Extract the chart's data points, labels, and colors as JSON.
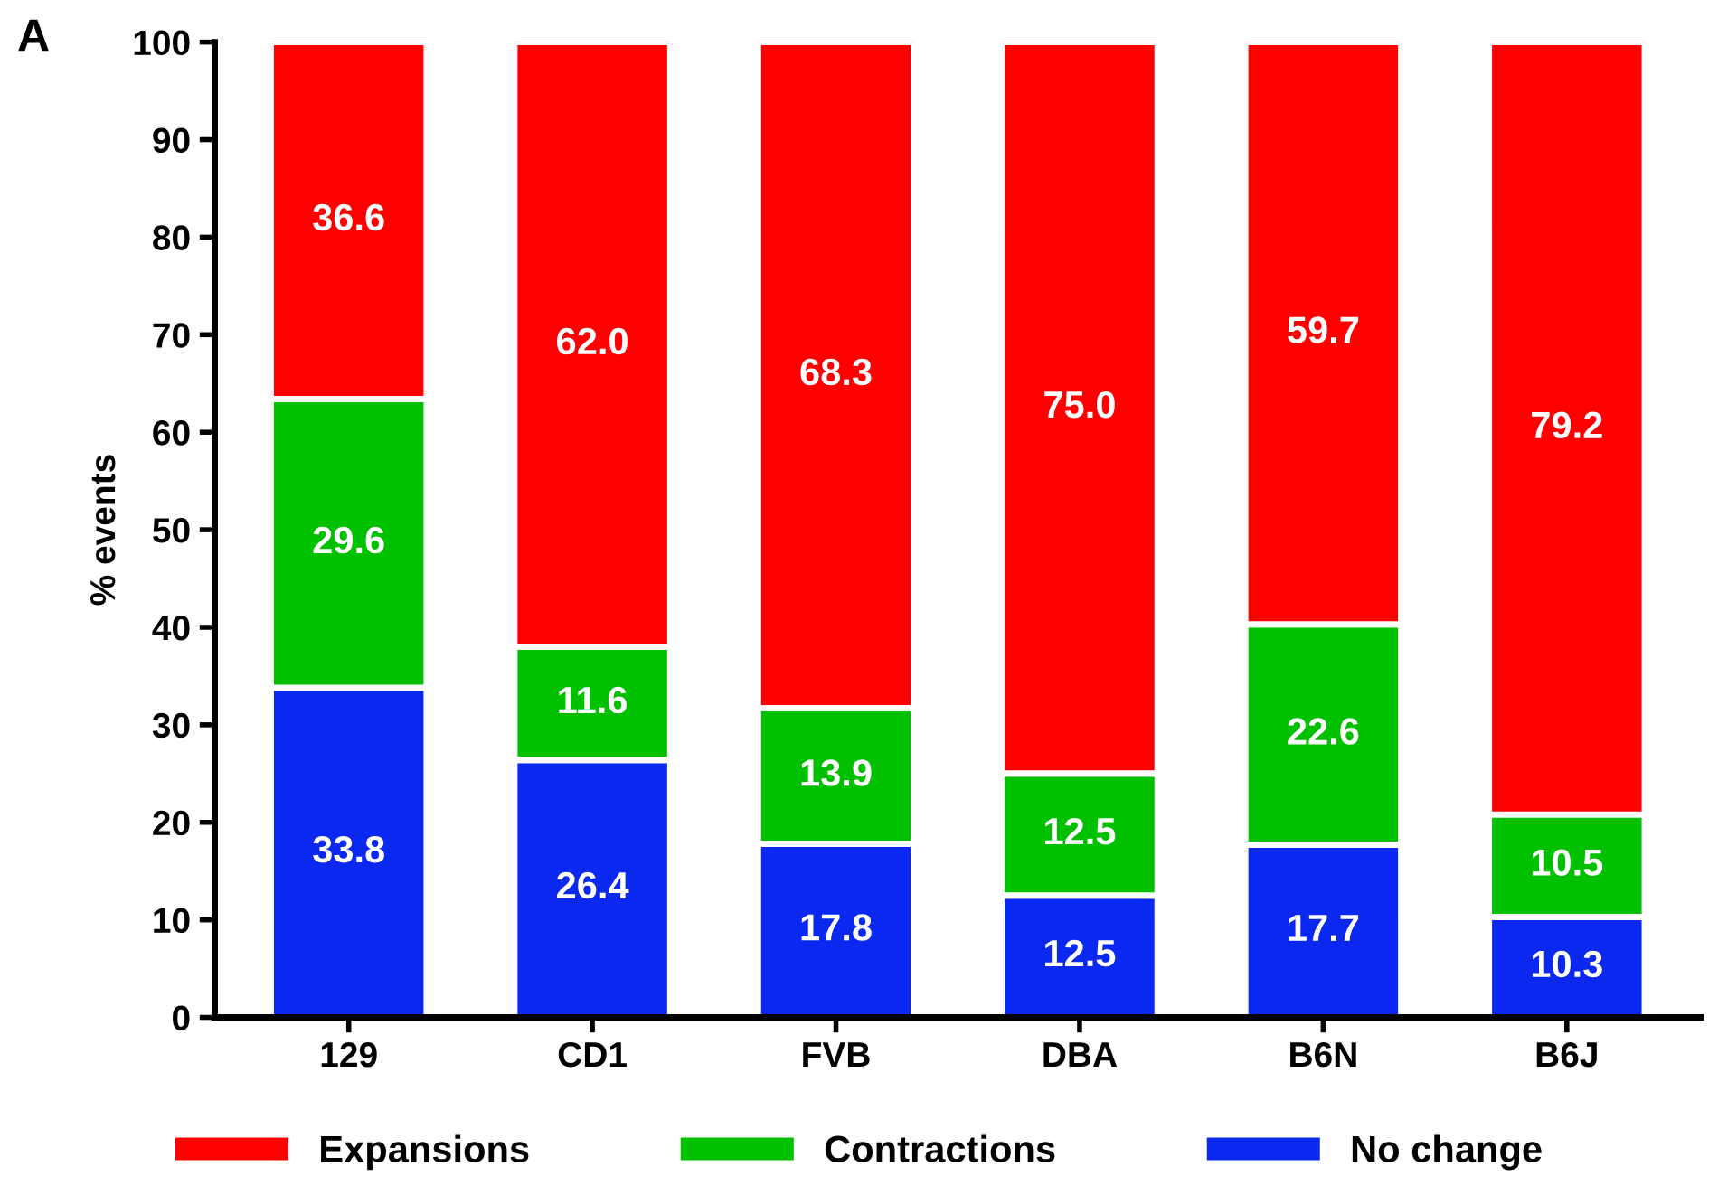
{
  "chart_data": {
    "type": "bar",
    "stacked": true,
    "ylabel": "% events",
    "annotations": [
      "A"
    ],
    "categories": [
      "129",
      "CD1",
      "FVB",
      "DBA",
      "B6N",
      "B6J"
    ],
    "series": [
      {
        "name": "No change",
        "color": "#0a28f0",
        "values": [
          33.8,
          26.4,
          17.8,
          12.5,
          17.7,
          10.3
        ],
        "value_labels": [
          "33.8",
          "26.4",
          "17.8",
          "12.5",
          "17.7",
          "10.3"
        ]
      },
      {
        "name": "Contractions",
        "color": "#00c000",
        "values": [
          29.6,
          11.6,
          13.9,
          12.5,
          22.6,
          10.5
        ],
        "value_labels": [
          "29.6",
          "11.6",
          "13.9",
          "12.5",
          "22.6",
          "10.5"
        ]
      },
      {
        "name": "Expansions",
        "color": "#ff0000",
        "values": [
          36.6,
          62.0,
          68.3,
          75.0,
          59.7,
          79.2
        ],
        "value_labels": [
          "36.6",
          "62.0",
          "68.3",
          "75.0",
          "59.7",
          "79.2"
        ]
      }
    ],
    "ylim": [
      0,
      100
    ],
    "yticks": [
      0,
      10,
      20,
      30,
      40,
      50,
      60,
      70,
      80,
      90,
      100
    ],
    "legend": "bottom",
    "grid": false
  }
}
